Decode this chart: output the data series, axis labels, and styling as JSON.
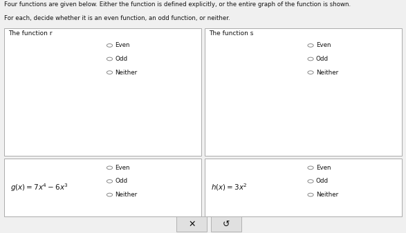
{
  "title_line1": "Four functions are given below. Either the function is defined explicitly, or the entire graph of the function is shown.",
  "title_line2": "For each, decide whether it is an even function, an odd function, or neither.",
  "top_left_label": "The function r",
  "top_right_label": "The function s",
  "bottom_left_formula": "g\\,(x) = 7x^{4} - 6x^{3}",
  "bottom_right_formula": "h\\,(x) = 3x^{2}",
  "radio_options": [
    "Even",
    "Odd",
    "Neither"
  ],
  "curve_color": "#4db8d4",
  "axis_color": "#666666",
  "bg_color": "#f0f0f0",
  "panel_bg": "#ffffff",
  "text_color": "#111111",
  "radio_color": "#888888",
  "border_color": "#aaaaaa",
  "btn_bg": "#e0e0e0",
  "underline_color": "#4444cc"
}
